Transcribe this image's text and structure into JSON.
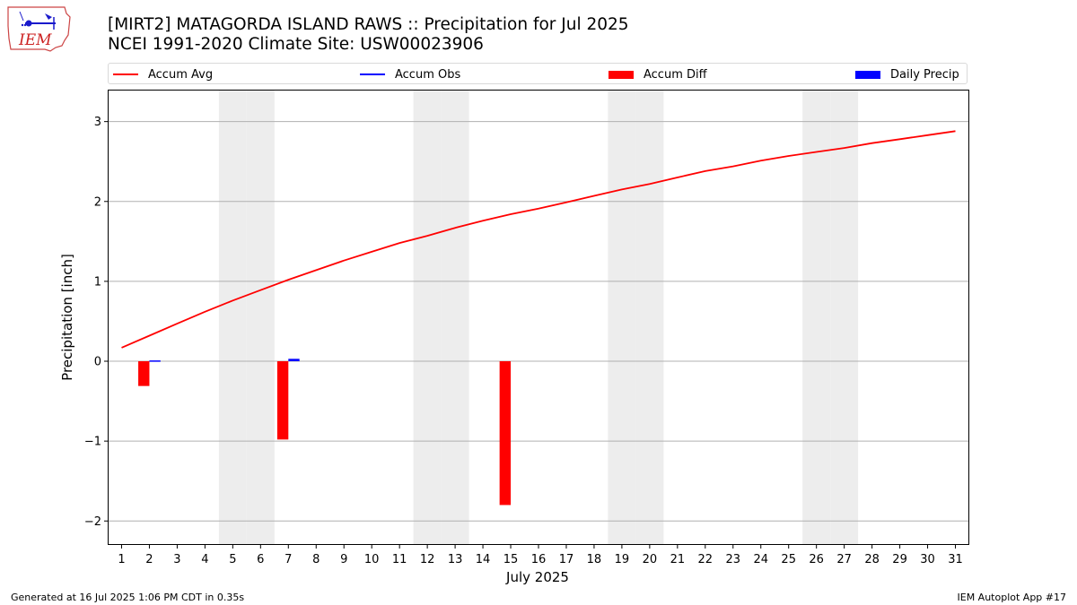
{
  "header": {
    "title_line1": "[MIRT2] MATAGORDA ISLAND RAWS :: Precipitation for Jul 2025",
    "title_line2": "NCEI 1991-2020 Climate Site: USW00023906"
  },
  "logo": {
    "text": "IEM"
  },
  "legend": {
    "items": [
      {
        "label": "Accum Avg",
        "kind": "line",
        "color": "#ff0000"
      },
      {
        "label": "Accum Obs",
        "kind": "line",
        "color": "#0000ff"
      },
      {
        "label": "Accum Diff",
        "kind": "box",
        "color": "#ff0000"
      },
      {
        "label": "Daily Precip",
        "kind": "box",
        "color": "#0000ff"
      }
    ]
  },
  "footer": {
    "left": "Generated at 16 Jul 2025 1:06 PM CDT in 0.35s",
    "right": "IEM Autoplot App #17"
  },
  "chart_data": {
    "type": "bar",
    "xlabel": "July 2025",
    "ylabel": "Precipitation [inch]",
    "xlim": [
      0.5,
      31.5
    ],
    "ylim": [
      -2.3,
      3.4
    ],
    "yticks": [
      -2,
      -1,
      0,
      1,
      2,
      3
    ],
    "ytick_labels": [
      "−2",
      "−1",
      "0",
      "1",
      "2",
      "3"
    ],
    "x": [
      1,
      2,
      3,
      4,
      5,
      6,
      7,
      8,
      9,
      10,
      11,
      12,
      13,
      14,
      15,
      16,
      17,
      18,
      19,
      20,
      21,
      22,
      23,
      24,
      25,
      26,
      27,
      28,
      29,
      30,
      31
    ],
    "weekend_days": [
      5,
      6,
      12,
      13,
      19,
      20,
      26,
      27
    ],
    "grid": "y",
    "series": [
      {
        "name": "Accum Avg",
        "type": "line",
        "color": "#ff0000",
        "values": [
          0.17,
          0.32,
          0.47,
          0.62,
          0.76,
          0.89,
          1.02,
          1.14,
          1.26,
          1.37,
          1.48,
          1.57,
          1.67,
          1.76,
          1.84,
          1.91,
          1.99,
          2.07,
          2.15,
          2.22,
          2.3,
          2.38,
          2.44,
          2.51,
          2.57,
          2.62,
          2.67,
          2.73,
          2.78,
          2.83,
          2.88
        ]
      },
      {
        "name": "Accum Diff",
        "type": "bar",
        "color": "#ff0000",
        "values": [
          null,
          -0.31,
          null,
          null,
          null,
          null,
          -0.98,
          null,
          null,
          null,
          null,
          null,
          null,
          null,
          -1.8,
          null,
          null,
          null,
          null,
          null,
          null,
          null,
          null,
          null,
          null,
          null,
          null,
          null,
          null,
          null,
          null
        ]
      },
      {
        "name": "Daily Precip",
        "type": "bar",
        "color": "#0000ff",
        "values": [
          null,
          0.01,
          null,
          null,
          null,
          null,
          0.03,
          null,
          null,
          null,
          null,
          null,
          null,
          null,
          null,
          null,
          null,
          null,
          null,
          null,
          null,
          null,
          null,
          null,
          null,
          null,
          null,
          null,
          null,
          null,
          null
        ]
      }
    ]
  }
}
